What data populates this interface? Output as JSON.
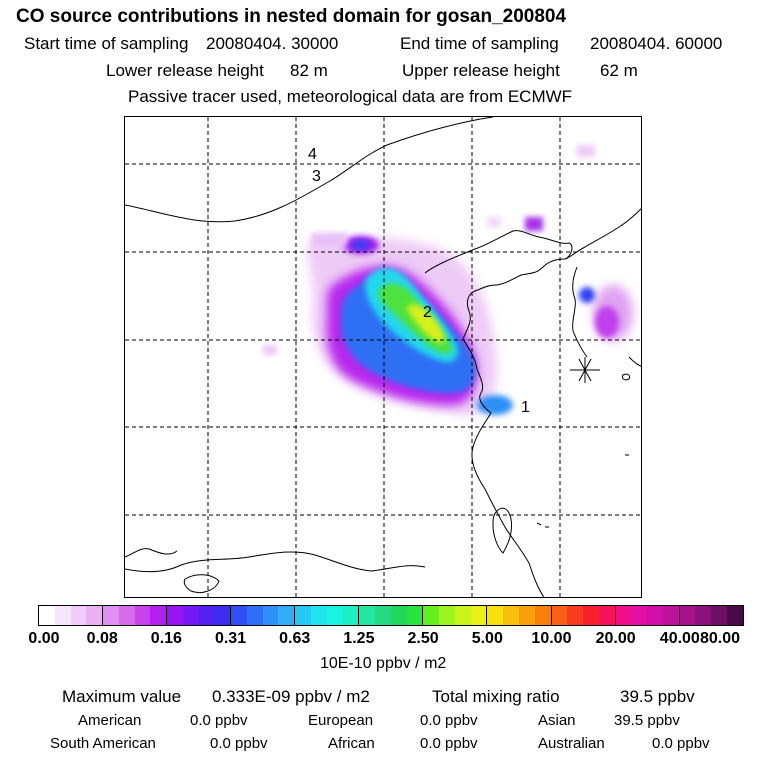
{
  "header": {
    "title": "CO  source contributions in nested domain for gosan_200804",
    "start_label": "Start time of sampling",
    "start_value": "20080404. 30000",
    "end_label": "End time of sampling",
    "end_value": "20080404. 60000",
    "lower_label": "Lower release height",
    "lower_value": "82 m",
    "upper_label": "Upper release height",
    "upper_value": "62 m",
    "note": "Passive tracer used, meteorological data are from ECMWF"
  },
  "map": {
    "markers": [
      "1",
      "2",
      "3",
      "4"
    ],
    "station_symbol": "asterisk-icon"
  },
  "legend": {
    "ticks": [
      "0.00",
      "0.08",
      "0.16",
      "0.31",
      "0.63",
      "1.25",
      "2.50",
      "5.00",
      "10.00",
      "20.00",
      "40.00",
      "80.00"
    ],
    "units": "10E-10 ppbv / m2",
    "colors": [
      "#ffffff",
      "#f7e6fb",
      "#f0cdf8",
      "#e8b2f4",
      "#e090f0",
      "#d46cec",
      "#c644ea",
      "#b21ff0",
      "#9714f5",
      "#7418f5",
      "#5520f2",
      "#3f2cf0",
      "#2f4ef4",
      "#2e70f6",
      "#2f8ff8",
      "#30acf8",
      "#28c8f4",
      "#1ee6ee",
      "#18f4e0",
      "#1cf0c2",
      "#22e6a2",
      "#26da82",
      "#22d65c",
      "#28e43c",
      "#64ee20",
      "#9cf41c",
      "#c8f41a",
      "#ecf018",
      "#f8e010",
      "#f8c00c",
      "#f8a00a",
      "#f8800a",
      "#f86018",
      "#f83c20",
      "#f8202c",
      "#f8125a",
      "#f0108a",
      "#e410a6",
      "#d010a8",
      "#bc129a",
      "#a6128a",
      "#8a127a",
      "#6c0f66",
      "#4a0a48"
    ]
  },
  "stats": {
    "max_label": "Maximum value",
    "max_value": "0.333E-09 ppbv / m2",
    "total_label": "Total mixing ratio",
    "total_value": "39.5 ppbv",
    "regions": [
      {
        "name": "American",
        "value": "0.0 ppbv"
      },
      {
        "name": "European",
        "value": "0.0 ppbv"
      },
      {
        "name": "Asian",
        "value": "39.5 ppbv"
      },
      {
        "name": "South American",
        "value": "0.0 ppbv"
      },
      {
        "name": "African",
        "value": "0.0 ppbv"
      },
      {
        "name": "Australian",
        "value": "0.0 ppbv"
      }
    ]
  }
}
